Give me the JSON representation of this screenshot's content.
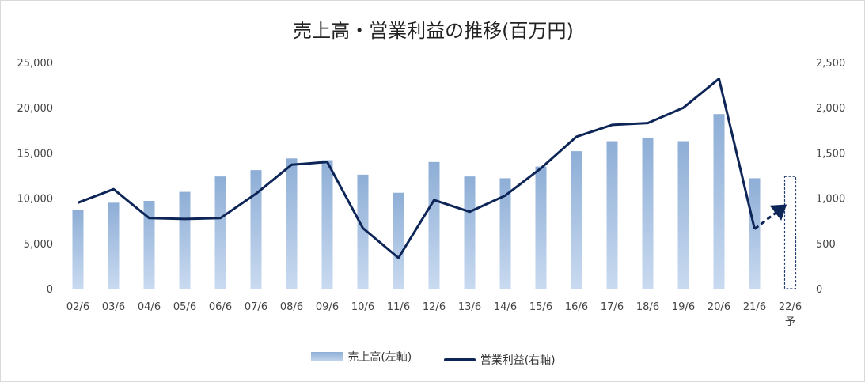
{
  "chart_data": {
    "type": "bar+line",
    "title": "売上高・営業利益の推移(百万円)",
    "categories": [
      "02/6",
      "03/6",
      "04/6",
      "05/6",
      "06/6",
      "07/6",
      "08/6",
      "09/6",
      "10/6",
      "11/6",
      "12/6",
      "13/6",
      "14/6",
      "15/6",
      "16/6",
      "17/6",
      "18/6",
      "19/6",
      "20/6",
      "21/6",
      "22/6"
    ],
    "forecast_label": "予",
    "series": [
      {
        "name": "売上高(左軸)",
        "kind": "bar",
        "axis": "left",
        "values": [
          8700,
          9500,
          9700,
          10700,
          12400,
          13100,
          14400,
          14200,
          12600,
          10600,
          14000,
          12400,
          12200,
          13500,
          15200,
          16300,
          16700,
          16300,
          19300,
          12200,
          12400
        ]
      },
      {
        "name": "営業利益(右軸)",
        "kind": "line",
        "axis": "right",
        "values": [
          950,
          1100,
          780,
          770,
          780,
          1050,
          1370,
          1400,
          670,
          340,
          980,
          850,
          1030,
          1330,
          1680,
          1810,
          1830,
          2000,
          2320,
          660,
          960
        ]
      }
    ],
    "left_axis": {
      "min": 0,
      "max": 25000,
      "ticks": [
        "0",
        "5,000",
        "10,000",
        "15,000",
        "20,000",
        "25,000"
      ]
    },
    "right_axis": {
      "min": 0,
      "max": 2500,
      "ticks": [
        "0",
        "500",
        "1,000",
        "1,500",
        "2,000",
        "2,500"
      ]
    },
    "legend_position": "bottom",
    "grid": false,
    "colors": {
      "bar_top": "#8eaed6",
      "bar_bottom": "#c9daf0",
      "line": "#0d2557",
      "forecast": "#1f3a73"
    }
  }
}
